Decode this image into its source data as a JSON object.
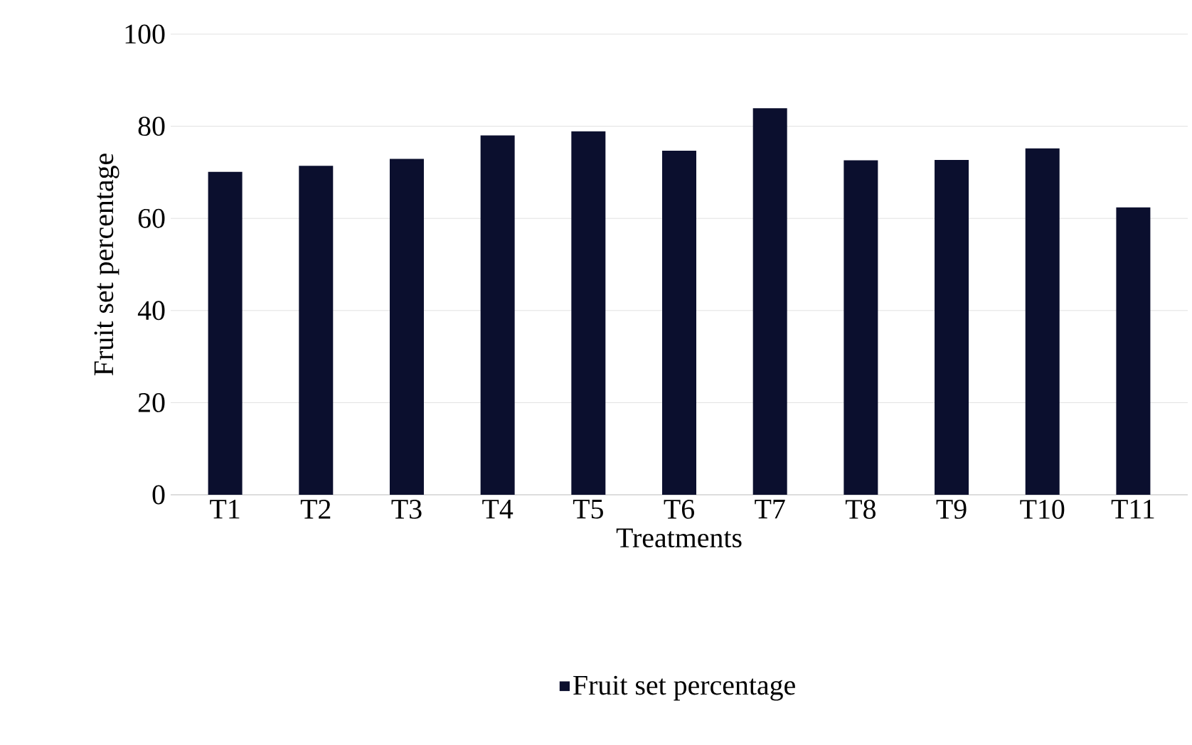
{
  "chart_data": {
    "type": "bar",
    "xlabel": "Treatments",
    "ylabel": "Fruit set percentage",
    "categories": [
      "T1",
      "T2",
      "T3",
      "T4",
      "T5",
      "T6",
      "T7",
      "T8",
      "T9",
      "T10",
      "T11"
    ],
    "series": [
      {
        "name": "Fruit set percentage",
        "color": "#0b0f2e",
        "values": [
          70.1,
          71.4,
          72.9,
          78.0,
          78.9,
          74.7,
          83.9,
          72.6,
          72.7,
          75.2,
          62.4
        ]
      }
    ],
    "ylim": [
      0,
      100
    ],
    "yticks": [
      0,
      20,
      40,
      60,
      80,
      100
    ],
    "grid": "y",
    "legend": "bottom"
  }
}
